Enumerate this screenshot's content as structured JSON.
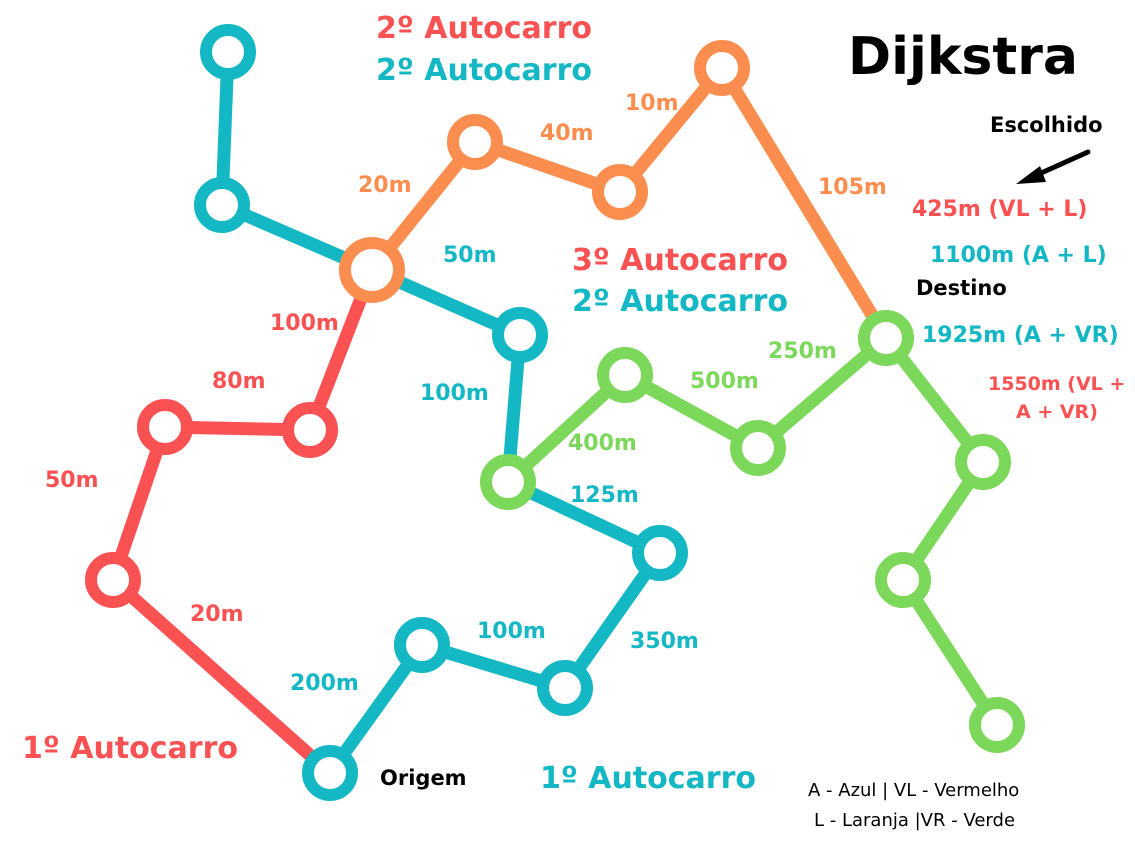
{
  "title": "Dijkstra",
  "colors": {
    "red": "#fa5152",
    "teal": "#14b7c4",
    "orange": "#fb8e4f",
    "green": "#7cd85a",
    "black": "#000000"
  },
  "edge_labels": {
    "orange_20": "20m",
    "orange_40": "40m",
    "orange_10": "10m",
    "orange_105": "105m",
    "teal_50": "50m",
    "teal_100a": "100m",
    "teal_125": "125m",
    "teal_350": "350m",
    "teal_100b": "100m",
    "teal_200": "200m",
    "red_100": "100m",
    "red_80": "80m",
    "red_50": "50m",
    "red_20": "20m",
    "green_400": "400m",
    "green_500": "500m",
    "green_250": "250m"
  },
  "bus_labels": {
    "top_red": "2º Autocarro",
    "top_teal": "2º Autocarro",
    "mid_red": "3º Autocarro",
    "mid_teal": "2º Autocarro",
    "bottom_red": "1º Autocarro",
    "bottom_teal": "1º Autocarro"
  },
  "results": {
    "chosen_label": "Escolhido",
    "r1": "425m (VL + L)",
    "r2": "1100m (A + L)",
    "r3": "1925m  (A + VR)",
    "r4_line1": "1550m (VL +",
    "r4_line2": "A + VR)"
  },
  "markers": {
    "destination": "Destino",
    "origin": "Origem"
  },
  "legend": {
    "line1": "A - Azul  |  VL - Vermelho",
    "line2": "L - Laranja  |VR - Verde"
  }
}
